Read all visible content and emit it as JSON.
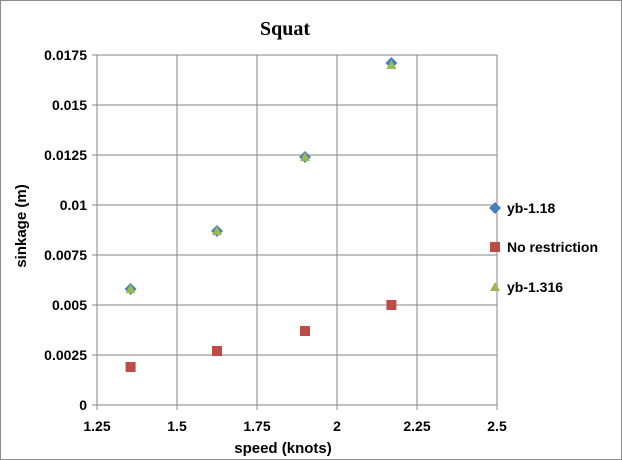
{
  "chart_data": {
    "type": "scatter",
    "title": "Squat",
    "xlabel": "speed (knots)",
    "ylabel": "sinkage (m)",
    "xlim": [
      1.25,
      2.5
    ],
    "ylim": [
      0,
      0.0175
    ],
    "x_ticks": [
      1.25,
      1.5,
      1.75,
      2,
      2.25,
      2.5
    ],
    "x_tick_labels": [
      "1.25",
      "1.5",
      "1.75",
      "2",
      "2.25",
      "2.5"
    ],
    "y_ticks": [
      0,
      0.0025,
      0.005,
      0.0075,
      0.01,
      0.0125,
      0.015,
      0.0175
    ],
    "y_tick_labels": [
      "0",
      "0.0025",
      "0.005",
      "0.0075",
      "0.01",
      "0.0125",
      "0.015",
      "0.0175"
    ],
    "grid": true,
    "legend_position": "right",
    "series": [
      {
        "name": "yb-1.18",
        "marker": "diamond",
        "color": "#4a7ebb",
        "x": [
          1.355,
          1.625,
          1.9,
          2.17
        ],
        "y": [
          0.0058,
          0.0087,
          0.0124,
          0.0171
        ]
      },
      {
        "name": "No restriction",
        "marker": "square",
        "color": "#be4b48",
        "x": [
          1.355,
          1.625,
          1.9,
          2.17
        ],
        "y": [
          0.0019,
          0.0027,
          0.0037,
          0.005
        ]
      },
      {
        "name": "yb-1.316",
        "marker": "triangle",
        "color": "#98b954",
        "x": [
          1.355,
          1.625,
          1.9,
          2.17
        ],
        "y": [
          0.0058,
          0.0087,
          0.0124,
          0.017
        ]
      }
    ]
  }
}
